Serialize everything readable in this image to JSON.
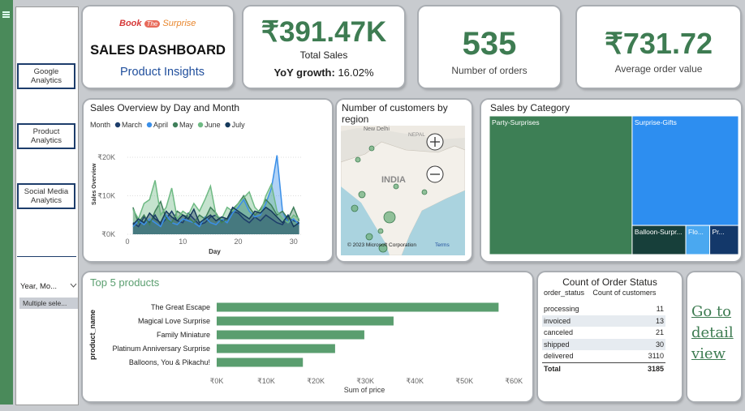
{
  "sidebar": {
    "buttons": [
      "Google Analytics",
      "Product Analytics",
      "Social Media Analytics"
    ],
    "filter_label": "Year, Mo...",
    "filter_value": "Multiple sele..."
  },
  "header": {
    "logo": [
      "Book",
      "The",
      "Surprise"
    ],
    "title": "SALES DASHBOARD",
    "subtitle": "Product Insights"
  },
  "kpis": [
    {
      "value": "₹391.47K",
      "label": "Total Sales",
      "growth_label": "YoY growth:",
      "growth": "16.02%"
    },
    {
      "value": "535",
      "label": "Number of orders"
    },
    {
      "value": "₹731.72",
      "label": "Average order value"
    }
  ],
  "map": {
    "title": "Number of customers by region",
    "labels": [
      "New Delhi",
      "NEPAL",
      "INDIA"
    ],
    "credit": "© 2023 Microsoft Corporation",
    "terms": "Terms"
  },
  "chart_data": [
    {
      "type": "area",
      "title": "Sales Overview by Day and Month",
      "legend_title": "Month",
      "x_label": "Day",
      "y_label": "Sales Overview",
      "x": [
        1,
        2,
        3,
        4,
        5,
        6,
        7,
        8,
        9,
        10,
        11,
        12,
        13,
        14,
        15,
        16,
        17,
        18,
        19,
        20,
        21,
        22,
        23,
        24,
        25,
        26,
        27,
        28,
        29,
        30,
        31
      ],
      "series": [
        {
          "name": "March",
          "color": "#1d3d6b",
          "values": [
            3000,
            2000,
            4500,
            3000,
            5000,
            2500,
            4000,
            6000,
            3500,
            3000,
            5500,
            4000,
            2500,
            3000,
            4500,
            5000,
            3500,
            4000,
            6000,
            5500,
            4000,
            3000,
            4500,
            3500,
            5000,
            4000,
            3000,
            2500,
            4500,
            3500,
            3000
          ]
        },
        {
          "name": "April",
          "color": "#3a8fe8",
          "values": [
            2000,
            3500,
            2500,
            4000,
            3000,
            2000,
            5000,
            3000,
            2500,
            4000,
            3500,
            3000,
            2000,
            4500,
            3000,
            2500,
            4000,
            3000,
            5500,
            7000,
            9000,
            6000,
            4500,
            5000,
            8000,
            12000,
            20500,
            6000,
            3000,
            4000,
            2500
          ]
        },
        {
          "name": "May",
          "color": "#3f7f5a",
          "values": [
            7000,
            3000,
            5000,
            2500,
            6000,
            8500,
            4000,
            3000,
            6000,
            5000,
            4500,
            3000,
            5000,
            4000,
            7000,
            5500,
            3000,
            4000,
            6500,
            8000,
            10000,
            7000,
            5000,
            6500,
            9000,
            7500,
            5000,
            6000,
            4000,
            7000,
            3500
          ]
        },
        {
          "name": "June",
          "color": "#6fba84",
          "values": [
            6500,
            4000,
            8000,
            9000,
            14000,
            5000,
            7000,
            12000,
            4000,
            6000,
            5000,
            8000,
            6000,
            9000,
            12500,
            5000,
            4000,
            7000,
            6000,
            8000,
            9500,
            11000,
            7000,
            5500,
            10000,
            13000,
            6000,
            4000,
            3000,
            5000,
            4000
          ]
        },
        {
          "name": "July",
          "color": "#163a5c",
          "values": [
            2500,
            4000,
            3000,
            5500,
            4000,
            3000,
            6000,
            4500,
            3500,
            5000,
            4000,
            6500,
            3000,
            4000,
            5000,
            3500,
            4500,
            4000,
            7000,
            6000,
            5000,
            4000,
            6000,
            5500,
            7000,
            6000,
            4500,
            3000,
            5000,
            2000,
            3000
          ]
        }
      ],
      "xlim": [
        0,
        31.5
      ],
      "xticks": [
        0,
        10,
        20,
        30
      ],
      "ylim": [
        0,
        26000
      ],
      "yticks": [
        {
          "value": 0,
          "label": "₹0K"
        },
        {
          "value": 10000,
          "label": "₹10K"
        },
        {
          "value": 20000,
          "label": "₹20K"
        }
      ],
      "grid": true
    },
    {
      "type": "treemap",
      "title": "Sales by Category",
      "categories": [
        "Party-Surprises",
        "Surprise-Gifts",
        "Balloon-Surpr...",
        "Flo...",
        "Pr..."
      ],
      "values": [
        224300,
        132000,
        17700,
        7900,
        9500
      ],
      "colors": [
        "#3d7f55",
        "#2d8ef0",
        "#173f3a",
        "#4aa8f0",
        "#13386a"
      ]
    },
    {
      "type": "hbar",
      "title": "Top 5 products",
      "x_label": "Sum of price",
      "y_label": "product_name",
      "categories": [
        "The Great Escape",
        "Magical Love Surprise",
        "Family Miniature",
        "Platinum Anniversary Surprise",
        "Balloons, You & Pikachu!"
      ],
      "values": [
        56900,
        35700,
        29800,
        23900,
        17400
      ],
      "color": "#5a9e6f",
      "xlim": [
        0,
        62000
      ],
      "xticks": [
        {
          "value": 0,
          "label": "₹0K"
        },
        {
          "value": 10000,
          "label": "₹10K"
        },
        {
          "value": 20000,
          "label": "₹20K"
        },
        {
          "value": 30000,
          "label": "₹30K"
        },
        {
          "value": 40000,
          "label": "₹40K"
        },
        {
          "value": 50000,
          "label": "₹50K"
        },
        {
          "value": 60000,
          "label": "₹60K"
        }
      ]
    }
  ],
  "order_status": {
    "title": "Count of Order Status",
    "columns": [
      "order_status",
      "Count of customers"
    ],
    "rows": [
      [
        "processing",
        11
      ],
      [
        "invoiced",
        13
      ],
      [
        "canceled",
        21
      ],
      [
        "shipped",
        30
      ],
      [
        "delivered",
        3110
      ]
    ],
    "total": [
      "Total",
      3185
    ]
  },
  "link": "Go to detail view"
}
